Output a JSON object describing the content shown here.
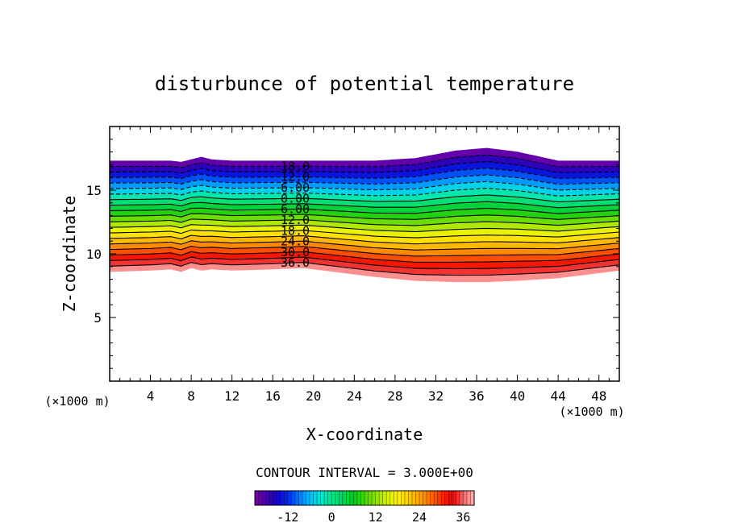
{
  "chart_data": {
    "type": "contour",
    "title": "disturbunce of potential temperature",
    "xlabel": "X-coordinate",
    "ylabel": "Z-coordinate",
    "x_unit_left": "(×1000 m)",
    "x_unit_right": "(×1000 m)",
    "xlim": [
      0,
      50
    ],
    "ylim": [
      0,
      20
    ],
    "xticks": [
      4,
      8,
      12,
      16,
      20,
      24,
      28,
      32,
      36,
      40,
      44,
      48
    ],
    "yticks": [
      5,
      10,
      15
    ],
    "contour_interval_text": "CONTOUR INTERVAL = 3.000E+00",
    "contour_labels": [
      {
        "text": "18.0",
        "level": -18
      },
      {
        "text": "12.0",
        "level": -12
      },
      {
        "text": "6.00",
        "level": -6
      },
      {
        "text": "0.00",
        "level": 0
      },
      {
        "text": "6.00",
        "level": 6
      },
      {
        "text": "12.0",
        "level": 12
      },
      {
        "text": "18.0",
        "level": 18
      },
      {
        "text": "24.0",
        "level": 24
      },
      {
        "text": "30.0",
        "level": 30
      },
      {
        "text": "36.0",
        "level": 36
      }
    ],
    "level_min": -21,
    "level_max": 39,
    "level_step": 3,
    "colorbar_ticks": [
      {
        "label": "-12",
        "value": -12
      },
      {
        "label": "0",
        "value": 0
      },
      {
        "label": "12",
        "value": 12
      },
      {
        "label": "24",
        "value": 24
      },
      {
        "label": "36",
        "value": 36
      }
    ],
    "layer_profile": {
      "x": [
        0,
        4,
        6,
        7,
        8,
        9,
        10,
        12,
        16,
        19,
        22,
        26,
        30,
        34,
        37,
        40,
        44,
        46,
        48,
        50
      ],
      "top_z": [
        17.3,
        17.3,
        17.3,
        17.2,
        17.4,
        17.6,
        17.4,
        17.3,
        17.3,
        17.3,
        17.3,
        17.3,
        17.5,
        18.1,
        18.3,
        18.0,
        17.3,
        17.3,
        17.3,
        17.3
      ],
      "bottom_z": [
        8.6,
        8.7,
        8.8,
        8.6,
        8.9,
        8.7,
        8.8,
        8.7,
        8.8,
        8.9,
        8.6,
        8.2,
        7.9,
        7.8,
        7.8,
        7.9,
        8.1,
        8.3,
        8.5,
        8.7
      ]
    }
  }
}
